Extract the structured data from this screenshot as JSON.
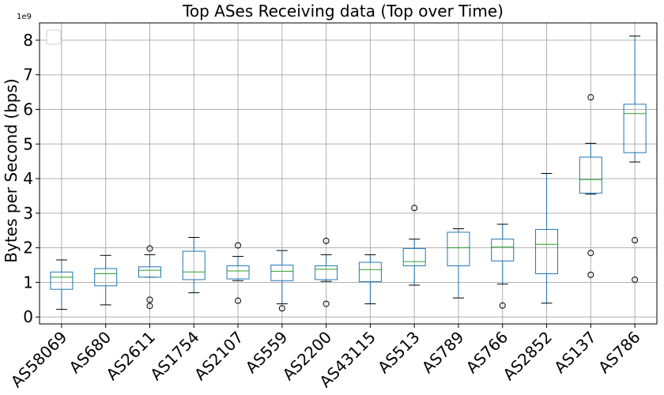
{
  "chart_data": {
    "type": "box",
    "title": "Top ASes Receiving data (Top over Time)",
    "xlabel": "",
    "ylabel": "Bytes per Second (bps)",
    "y_multiplier": "1e9",
    "ylim": [
      -0.2,
      8.5
    ],
    "yticks": [
      0,
      1,
      2,
      3,
      4,
      5,
      6,
      7,
      8
    ],
    "grid": true,
    "legend": "top-left",
    "colors": {
      "box": "#1f77b4",
      "median": "#2ca02c",
      "whisker": "#000000",
      "grid": "#b0b0b0"
    },
    "categories": [
      "AS58069",
      "AS680",
      "AS2611",
      "AS1754",
      "AS2107",
      "AS559",
      "AS2200",
      "AS43115",
      "AS513",
      "AS789",
      "AS766",
      "AS2852",
      "AS137",
      "AS786"
    ],
    "boxes": [
      {
        "label": "AS58069",
        "whislo": 0.22,
        "q1": 0.8,
        "med": 1.15,
        "q3": 1.3,
        "whishi": 1.65,
        "fliers": []
      },
      {
        "label": "AS680",
        "whislo": 0.35,
        "q1": 0.9,
        "med": 1.25,
        "q3": 1.4,
        "whishi": 1.78,
        "fliers": []
      },
      {
        "label": "AS2611",
        "whislo": 1.15,
        "q1": 1.15,
        "med": 1.35,
        "q3": 1.45,
        "whishi": 1.8,
        "fliers": [
          1.98,
          0.5,
          0.32
        ]
      },
      {
        "label": "AS1754",
        "whislo": 0.7,
        "q1": 1.08,
        "med": 1.3,
        "q3": 1.9,
        "whishi": 2.3,
        "fliers": []
      },
      {
        "label": "AS2107",
        "whislo": 1.05,
        "q1": 1.1,
        "med": 1.33,
        "q3": 1.48,
        "whishi": 1.75,
        "fliers": [
          2.07,
          0.47
        ]
      },
      {
        "label": "AS559",
        "whislo": 0.38,
        "q1": 1.05,
        "med": 1.32,
        "q3": 1.5,
        "whishi": 1.92,
        "fliers": [
          0.25
        ]
      },
      {
        "label": "AS2200",
        "whislo": 1.03,
        "q1": 1.08,
        "med": 1.38,
        "q3": 1.48,
        "whishi": 1.8,
        "fliers": [
          2.2,
          0.38
        ]
      },
      {
        "label": "AS43115",
        "whislo": 0.38,
        "q1": 1.02,
        "med": 1.37,
        "q3": 1.58,
        "whishi": 1.8,
        "fliers": []
      },
      {
        "label": "AS513",
        "whislo": 0.92,
        "q1": 1.48,
        "med": 1.6,
        "q3": 1.98,
        "whishi": 2.25,
        "fliers": [
          3.15
        ]
      },
      {
        "label": "AS789",
        "whislo": 0.55,
        "q1": 1.48,
        "med": 2.0,
        "q3": 2.45,
        "whishi": 2.55,
        "fliers": []
      },
      {
        "label": "AS766",
        "whislo": 0.95,
        "q1": 1.62,
        "med": 2.02,
        "q3": 2.25,
        "whishi": 2.68,
        "fliers": [
          0.33
        ]
      },
      {
        "label": "AS2852",
        "whislo": 0.4,
        "q1": 1.25,
        "med": 2.1,
        "q3": 2.53,
        "whishi": 4.15,
        "fliers": []
      },
      {
        "label": "AS137",
        "whislo": 3.55,
        "q1": 3.58,
        "med": 3.97,
        "q3": 4.62,
        "whishi": 5.02,
        "fliers": [
          6.35,
          1.85,
          1.22
        ]
      },
      {
        "label": "AS786",
        "whislo": 4.48,
        "q1": 4.75,
        "med": 5.88,
        "q3": 6.15,
        "whishi": 8.12,
        "fliers": [
          2.22,
          1.08
        ]
      }
    ]
  }
}
